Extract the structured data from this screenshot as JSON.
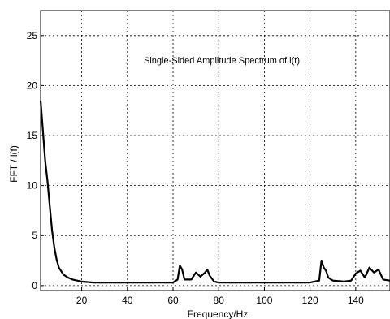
{
  "chart_data": {
    "type": "line",
    "title": "",
    "annotation": "Single-Sided Amplitude Spectrum of l(t)",
    "xlabel": "Frequency/Hz",
    "ylabel": "FFT / l(f)",
    "xlim": [
      2,
      155
    ],
    "ylim": [
      -0.5,
      27.5
    ],
    "xticks": [
      20,
      40,
      60,
      80,
      100,
      120,
      140
    ],
    "yticks": [
      0,
      5,
      10,
      15,
      20,
      25
    ],
    "grid": true,
    "grid_style": "dashed",
    "line_color": "#000000",
    "series": [
      {
        "x": [
          2,
          3,
          4,
          5,
          6,
          7,
          8,
          9,
          10,
          12,
          14,
          16,
          18,
          20,
          25,
          30,
          40,
          50,
          60,
          62,
          63,
          64,
          65,
          68,
          70,
          72,
          74,
          75,
          76,
          78,
          80,
          90,
          100,
          110,
          120,
          124,
          125,
          126,
          127,
          128,
          130,
          135,
          138,
          140,
          142,
          144,
          146,
          148,
          150,
          152,
          155
        ],
        "y": [
          18.5,
          15.5,
          12.5,
          10.5,
          8.0,
          5.5,
          3.8,
          2.6,
          1.8,
          1.1,
          0.8,
          0.6,
          0.5,
          0.4,
          0.3,
          0.3,
          0.3,
          0.3,
          0.3,
          0.6,
          2.0,
          1.6,
          0.6,
          0.6,
          1.3,
          0.9,
          1.3,
          1.6,
          1.0,
          0.4,
          0.3,
          0.3,
          0.3,
          0.3,
          0.3,
          0.5,
          2.5,
          1.8,
          1.5,
          0.8,
          0.5,
          0.4,
          0.5,
          1.2,
          1.5,
          0.8,
          1.8,
          1.3,
          1.6,
          0.6,
          0.5
        ]
      }
    ]
  }
}
